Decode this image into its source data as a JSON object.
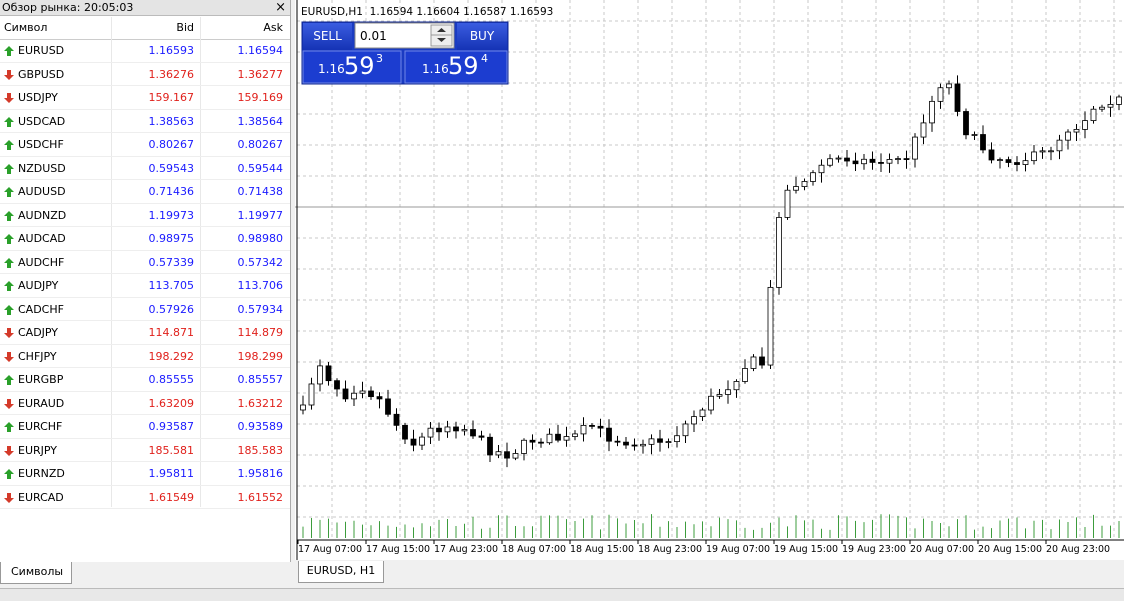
{
  "market_watch": {
    "title": "Обзор рынка: 20:05:03",
    "close": "×",
    "headers": [
      "Символ",
      "Bid",
      "Ask"
    ],
    "rows": [
      {
        "symbol": "EURUSD",
        "bid": "1.16593",
        "ask": "1.16594",
        "direction": "up"
      },
      {
        "symbol": "GBPUSD",
        "bid": "1.36276",
        "ask": "1.36277",
        "direction": "down"
      },
      {
        "symbol": "USDJPY",
        "bid": "159.167",
        "ask": "159.169",
        "direction": "down"
      },
      {
        "symbol": "USDCAD",
        "bid": "1.38563",
        "ask": "1.38564",
        "direction": "up"
      },
      {
        "symbol": "USDCHF",
        "bid": "0.80267",
        "ask": "0.80267",
        "direction": "up"
      },
      {
        "symbol": "NZDUSD",
        "bid": "0.59543",
        "ask": "0.59544",
        "direction": "up"
      },
      {
        "symbol": "AUDUSD",
        "bid": "0.71436",
        "ask": "0.71438",
        "direction": "up"
      },
      {
        "symbol": "AUDNZD",
        "bid": "1.19973",
        "ask": "1.19977",
        "direction": "up"
      },
      {
        "symbol": "AUDCAD",
        "bid": "0.98975",
        "ask": "0.98980",
        "direction": "up"
      },
      {
        "symbol": "AUDCHF",
        "bid": "0.57339",
        "ask": "0.57342",
        "direction": "up"
      },
      {
        "symbol": "AUDJPY",
        "bid": "113.705",
        "ask": "113.706",
        "direction": "up"
      },
      {
        "symbol": "CADCHF",
        "bid": "0.57926",
        "ask": "0.57934",
        "direction": "up"
      },
      {
        "symbol": "CADJPY",
        "bid": "114.871",
        "ask": "114.879",
        "direction": "down"
      },
      {
        "symbol": "CHFJPY",
        "bid": "198.292",
        "ask": "198.299",
        "direction": "down"
      },
      {
        "symbol": "EURGBP",
        "bid": "0.85555",
        "ask": "0.85557",
        "direction": "up"
      },
      {
        "symbol": "EURAUD",
        "bid": "1.63209",
        "ask": "1.63212",
        "direction": "down"
      },
      {
        "symbol": "EURCHF",
        "bid": "0.93587",
        "ask": "0.93589",
        "direction": "up"
      },
      {
        "symbol": "EURJPY",
        "bid": "185.581",
        "ask": "185.583",
        "direction": "down"
      },
      {
        "symbol": "EURNZD",
        "bid": "1.95811",
        "ask": "1.95816",
        "direction": "up"
      },
      {
        "symbol": "EURCAD",
        "bid": "1.61549",
        "ask": "1.61552",
        "direction": "down"
      }
    ],
    "tab": "Символы"
  },
  "chart": {
    "header": "EURUSD,H1  1.16594 1.16604 1.16587 1.16593",
    "trade": {
      "sell": "SELL",
      "buy": "BUY",
      "lot": "0.01",
      "sell_price": {
        "prefix": "1.16",
        "big": "59",
        "small": "3"
      },
      "buy_price": {
        "prefix": "1.16",
        "big": "59",
        "small": "4"
      }
    },
    "time_labels": [
      "17 Aug 07:00",
      "17 Aug 15:00",
      "17 Aug 23:00",
      "18 Aug 07:00",
      "18 Aug 15:00",
      "18 Aug 23:00",
      "19 Aug 07:00",
      "19 Aug 15:00",
      "19 Aug 23:00",
      "20 Aug 07:00",
      "20 Aug 15:00",
      "20 Aug 23:00"
    ],
    "tab": "EURUSD, H1"
  }
}
